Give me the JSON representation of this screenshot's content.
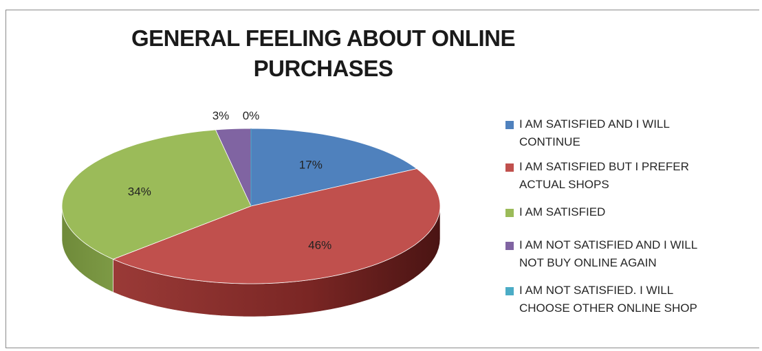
{
  "chart_data": {
    "type": "pie",
    "title_lines": [
      "GENERAL FEELING ABOUT ONLINE",
      "PURCHASES"
    ],
    "slices": [
      {
        "label": "I AM SATISFIED AND I WILL CONTINUE",
        "legend_lines": [
          "I AM SATISFIED AND I WILL",
          "CONTINUE"
        ],
        "value": 17,
        "value_label": "17%",
        "color": "#4f81bd"
      },
      {
        "label": "I AM SATISFIED BUT I PREFER ACTUAL SHOPS",
        "legend_lines": [
          "I AM SATISFIED BUT I PREFER",
          "ACTUAL SHOPS"
        ],
        "value": 46,
        "value_label": "46%",
        "color": "#c0504d"
      },
      {
        "label": "I AM SATISFIED",
        "legend_lines": [
          "I AM SATISFIED"
        ],
        "value": 34,
        "value_label": "34%",
        "color": "#9bbb59"
      },
      {
        "label": "I AM NOT SATISFIED AND I WILL NOT BUY ONLINE AGAIN",
        "legend_lines": [
          "I AM NOT SATISFIED AND I WILL",
          "NOT BUY ONLINE AGAIN"
        ],
        "value": 3,
        "value_label": "3%",
        "color": "#8064a2"
      },
      {
        "label": "I AM NOT SATISFIED. I WILL CHOOSE OTHER ONLINE SHOP",
        "legend_lines": [
          "I AM NOT SATISFIED. I WILL",
          "CHOOSE OTHER ONLINE SHOP"
        ],
        "value": 0,
        "value_label": "0%",
        "color": "#4bacc6"
      }
    ],
    "legend_position": "right",
    "style": "3d-pie"
  }
}
